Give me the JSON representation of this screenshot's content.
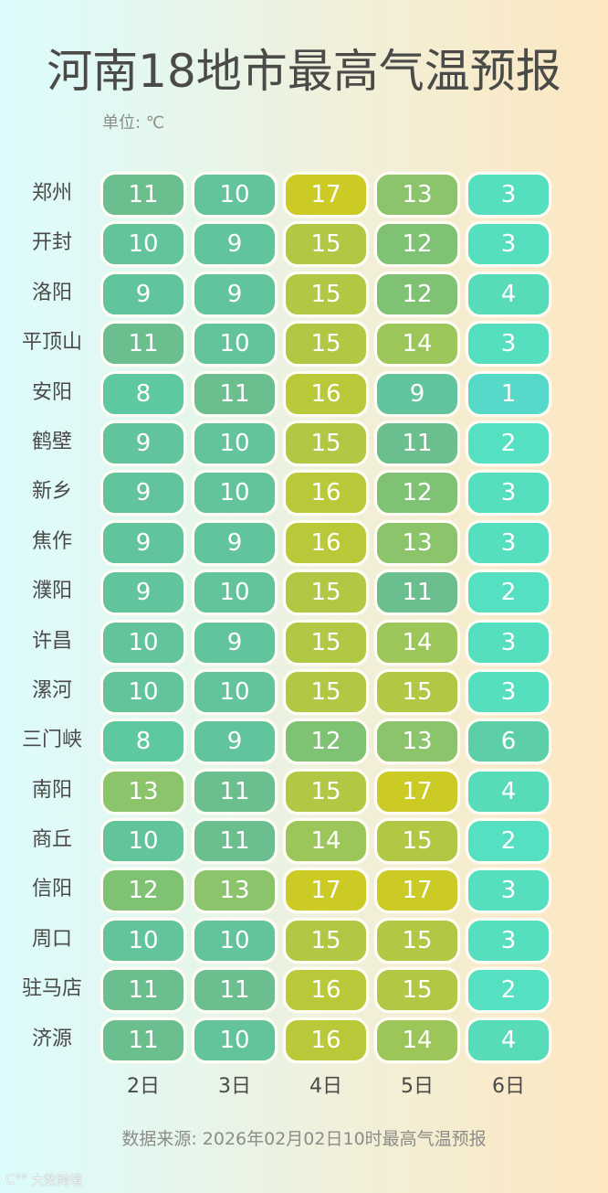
{
  "header": {
    "title": "河南18地市最高气温预报",
    "unit": "单位: ℃"
  },
  "days": [
    "2日",
    "3日",
    "4日",
    "5日",
    "6日"
  ],
  "rows": [
    {
      "city": "郑州",
      "values": [
        11,
        10,
        17,
        13,
        3
      ]
    },
    {
      "city": "开封",
      "values": [
        10,
        9,
        15,
        12,
        3
      ]
    },
    {
      "city": "洛阳",
      "values": [
        9,
        9,
        15,
        12,
        4
      ]
    },
    {
      "city": "平顶山",
      "values": [
        11,
        10,
        15,
        14,
        3
      ]
    },
    {
      "city": "安阳",
      "values": [
        8,
        11,
        16,
        9,
        1
      ]
    },
    {
      "city": "鹤壁",
      "values": [
        9,
        10,
        15,
        11,
        2
      ]
    },
    {
      "city": "新乡",
      "values": [
        9,
        10,
        16,
        12,
        3
      ]
    },
    {
      "city": "焦作",
      "values": [
        9,
        9,
        16,
        13,
        3
      ]
    },
    {
      "city": "濮阳",
      "values": [
        9,
        10,
        15,
        11,
        2
      ]
    },
    {
      "city": "许昌",
      "values": [
        10,
        9,
        15,
        14,
        3
      ]
    },
    {
      "city": "漯河",
      "values": [
        10,
        10,
        15,
        15,
        3
      ]
    },
    {
      "city": "三门峡",
      "values": [
        8,
        9,
        12,
        13,
        6
      ]
    },
    {
      "city": "南阳",
      "values": [
        13,
        11,
        15,
        17,
        4
      ]
    },
    {
      "city": "商丘",
      "values": [
        10,
        11,
        14,
        15,
        2
      ]
    },
    {
      "city": "信阳",
      "values": [
        12,
        13,
        17,
        17,
        3
      ]
    },
    {
      "city": "周口",
      "values": [
        10,
        10,
        15,
        15,
        3
      ]
    },
    {
      "city": "驻马店",
      "values": [
        11,
        11,
        16,
        15,
        2
      ]
    },
    {
      "city": "济源",
      "values": [
        11,
        10,
        16,
        14,
        4
      ]
    }
  ],
  "color_scale": {
    "1": "#56d9c9",
    "2": "#55e0c2",
    "3": "#55dfbf",
    "4": "#57dbb8",
    "5": "#5ad5b0",
    "6": "#5dcfa8",
    "7": "#5ecba3",
    "8": "#5ec9a0",
    "9": "#62c49c",
    "10": "#63c39b",
    "11": "#6bbf8e",
    "12": "#80c274",
    "13": "#8bc46b",
    "14": "#9cc65a",
    "15": "#b0c844",
    "16": "#b9c93a",
    "17": "#ccca24"
  },
  "footer": {
    "source": "数据来源: 2026年02月02日10时最高气温预报",
    "watermark": "大数跨境"
  },
  "chart_data": {
    "type": "heatmap",
    "title": "河南18地市最高气温预报",
    "subtitle": "单位: ℃",
    "x": [
      "2日",
      "3日",
      "4日",
      "5日",
      "6日"
    ],
    "y": [
      "郑州",
      "开封",
      "洛阳",
      "平顶山",
      "安阳",
      "鹤壁",
      "新乡",
      "焦作",
      "濮阳",
      "许昌",
      "漯河",
      "三门峡",
      "南阳",
      "商丘",
      "信阳",
      "周口",
      "驻马店",
      "济源"
    ],
    "values": [
      [
        11,
        10,
        17,
        13,
        3
      ],
      [
        10,
        9,
        15,
        12,
        3
      ],
      [
        9,
        9,
        15,
        12,
        4
      ],
      [
        11,
        10,
        15,
        14,
        3
      ],
      [
        8,
        11,
        16,
        9,
        1
      ],
      [
        9,
        10,
        15,
        11,
        2
      ],
      [
        9,
        10,
        16,
        12,
        3
      ],
      [
        9,
        9,
        16,
        13,
        3
      ],
      [
        9,
        10,
        15,
        11,
        2
      ],
      [
        10,
        9,
        15,
        14,
        3
      ],
      [
        10,
        10,
        15,
        15,
        3
      ],
      [
        8,
        9,
        12,
        13,
        6
      ],
      [
        13,
        11,
        15,
        17,
        4
      ],
      [
        10,
        11,
        14,
        15,
        2
      ],
      [
        12,
        13,
        17,
        17,
        3
      ],
      [
        10,
        10,
        15,
        15,
        3
      ],
      [
        11,
        11,
        16,
        15,
        2
      ],
      [
        11,
        10,
        16,
        14,
        4
      ]
    ],
    "annotation": "数据来源: 2026年02月02日10时最高气温预报",
    "color_range": [
      "#55dfbf",
      "#ccca24"
    ]
  }
}
